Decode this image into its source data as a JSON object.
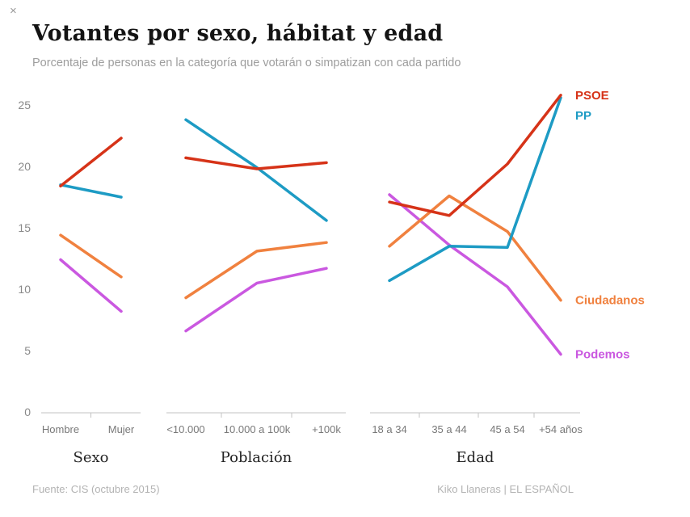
{
  "window": {
    "close_glyph": "×"
  },
  "footer": {
    "source": "Fuente: CIS (octubre 2015)",
    "credit": "Kiko Llaneras  |  EL ESPAÑOL"
  },
  "chart_data": {
    "type": "line",
    "title": "Votantes por sexo, hábitat y edad",
    "subtitle": "Porcentaje de personas en la categoría que votarán o simpatizan con cada partido",
    "ylabel": "",
    "ylim": [
      0,
      25
    ],
    "yticks": [
      0,
      5,
      10,
      15,
      20,
      25
    ],
    "grid": false,
    "legend_position": "right",
    "series_order": [
      "PSOE",
      "PP",
      "Ciudadanos",
      "Podemos"
    ],
    "colors": {
      "PSOE": "#d63318",
      "PP": "#1d9bc4",
      "Ciudadanos": "#f0813f",
      "Podemos": "#ca58e0"
    },
    "panels": [
      {
        "label": "Sexo",
        "categories": [
          "Hombre",
          "Mujer"
        ],
        "series": [
          {
            "name": "PSOE",
            "values": [
              18.4,
              22.3
            ]
          },
          {
            "name": "PP",
            "values": [
              18.5,
              17.5
            ]
          },
          {
            "name": "Ciudadanos",
            "values": [
              14.4,
              11.0
            ]
          },
          {
            "name": "Podemos",
            "values": [
              12.4,
              8.2
            ]
          }
        ]
      },
      {
        "label": "Población",
        "categories": [
          "<10.000",
          "10.000 a 100k",
          "+100k"
        ],
        "series": [
          {
            "name": "PSOE",
            "values": [
              20.7,
              19.8,
              20.3
            ]
          },
          {
            "name": "PP",
            "values": [
              23.8,
              19.9,
              15.6
            ]
          },
          {
            "name": "Ciudadanos",
            "values": [
              9.3,
              13.1,
              13.8
            ]
          },
          {
            "name": "Podemos",
            "values": [
              6.6,
              10.5,
              11.7
            ]
          }
        ]
      },
      {
        "label": "Edad",
        "categories": [
          "18 a 34",
          "35 a 44",
          "45 a 54",
          "+54 años"
        ],
        "series": [
          {
            "name": "PSOE",
            "values": [
              17.1,
              16.0,
              20.2,
              25.8
            ]
          },
          {
            "name": "PP",
            "values": [
              10.7,
              13.5,
              13.4,
              25.6
            ]
          },
          {
            "name": "Ciudadanos",
            "values": [
              13.5,
              17.6,
              14.7,
              9.1
            ]
          },
          {
            "name": "Podemos",
            "values": [
              17.7,
              13.6,
              10.2,
              4.7
            ]
          }
        ]
      }
    ]
  }
}
